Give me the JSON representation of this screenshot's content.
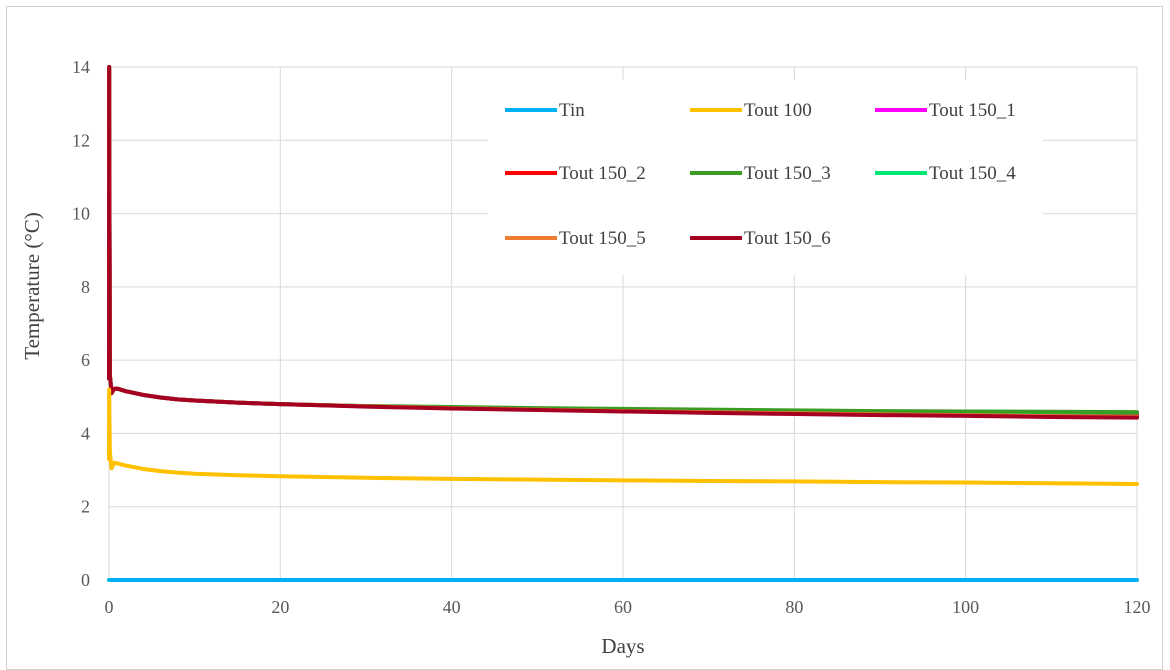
{
  "chart_data": {
    "type": "line",
    "title": "",
    "xlabel": "Days",
    "ylabel": "Temperature (°C)",
    "xlim": [
      0,
      120
    ],
    "ylim": [
      0,
      14
    ],
    "xticks": [
      0,
      20,
      40,
      60,
      80,
      100,
      120
    ],
    "yticks": [
      0,
      2,
      4,
      6,
      8,
      10,
      12,
      14
    ],
    "grid": true,
    "legend_position": "top-right",
    "legend_order": [
      "Tin",
      "Tout 100",
      "Tout 150_1",
      "Tout 150_2",
      "Tout 150_3",
      "Tout 150_4",
      "Tout 150_5",
      "Tout 150_6"
    ],
    "series": [
      {
        "name": "Tout 150_1",
        "color": "#ff00ff",
        "x": [
          0,
          0.02,
          0.1,
          0.3,
          0.6,
          1,
          2,
          4,
          6,
          8,
          10,
          15,
          20,
          30,
          40,
          50,
          60,
          70,
          80,
          90,
          100,
          110,
          120
        ],
        "y": [
          5.5,
          14,
          5.6,
          5.1,
          5.22,
          5.22,
          5.15,
          5.05,
          4.98,
          4.93,
          4.9,
          4.84,
          4.8,
          4.74,
          4.7,
          4.66,
          4.63,
          4.61,
          4.59,
          4.57,
          4.55,
          4.54,
          4.52
        ]
      },
      {
        "name": "Tout 150_2",
        "color": "#ff0000",
        "x": [
          0,
          0.02,
          0.1,
          0.3,
          0.6,
          1,
          2,
          4,
          6,
          8,
          10,
          15,
          20,
          30,
          40,
          50,
          60,
          70,
          80,
          90,
          100,
          110,
          120
        ],
        "y": [
          5.5,
          14,
          5.6,
          5.1,
          5.22,
          5.22,
          5.15,
          5.05,
          4.98,
          4.93,
          4.9,
          4.84,
          4.8,
          4.74,
          4.7,
          4.66,
          4.63,
          4.61,
          4.59,
          4.57,
          4.55,
          4.53,
          4.5
        ]
      },
      {
        "name": "Tout 150_4",
        "color": "#00e676",
        "x": [
          0,
          0.02,
          0.1,
          0.3,
          0.6,
          1,
          2,
          4,
          6,
          8,
          10,
          15,
          20,
          30,
          40,
          50,
          60,
          70,
          80,
          90,
          100,
          110,
          120
        ],
        "y": [
          5.5,
          14,
          5.6,
          5.1,
          5.22,
          5.22,
          5.15,
          5.05,
          4.98,
          4.93,
          4.9,
          4.84,
          4.8,
          4.74,
          4.71,
          4.68,
          4.66,
          4.64,
          4.62,
          4.6,
          4.59,
          4.58,
          4.57
        ]
      },
      {
        "name": "Tout 150_3",
        "color": "#3a9d23",
        "x": [
          0,
          0.02,
          0.1,
          0.3,
          0.6,
          1,
          2,
          4,
          6,
          8,
          10,
          15,
          20,
          30,
          40,
          50,
          60,
          70,
          80,
          90,
          100,
          110,
          120
        ],
        "y": [
          5.5,
          14,
          5.6,
          5.1,
          5.22,
          5.22,
          5.15,
          5.05,
          4.98,
          4.93,
          4.9,
          4.84,
          4.8,
          4.75,
          4.72,
          4.69,
          4.67,
          4.65,
          4.63,
          4.61,
          4.6,
          4.59,
          4.58
        ]
      },
      {
        "name": "Tout 150_5",
        "color": "#ed7d31",
        "x": [
          0,
          0.02,
          0.1,
          0.3,
          0.6,
          1,
          2,
          4,
          6,
          8,
          10,
          15,
          20,
          30,
          40,
          50,
          60,
          70,
          80,
          90,
          100,
          110,
          120
        ],
        "y": [
          5.5,
          14,
          5.6,
          5.1,
          5.22,
          5.22,
          5.15,
          5.05,
          4.98,
          4.93,
          4.9,
          4.84,
          4.8,
          4.74,
          4.69,
          4.65,
          4.61,
          4.58,
          4.55,
          4.52,
          4.5,
          4.47,
          4.45
        ]
      },
      {
        "name": "Tout 150_6",
        "color": "#a50021",
        "x": [
          0,
          0.02,
          0.1,
          0.3,
          0.6,
          1,
          2,
          4,
          6,
          8,
          10,
          15,
          20,
          30,
          40,
          50,
          60,
          70,
          80,
          90,
          100,
          110,
          120
        ],
        "y": [
          5.5,
          14,
          5.6,
          5.1,
          5.22,
          5.22,
          5.15,
          5.05,
          4.98,
          4.93,
          4.9,
          4.84,
          4.8,
          4.73,
          4.68,
          4.64,
          4.6,
          4.56,
          4.53,
          4.5,
          4.48,
          4.45,
          4.43
        ]
      },
      {
        "name": "Tout 100",
        "color": "#ffc000",
        "x": [
          0,
          0.02,
          0.1,
          0.3,
          0.6,
          1,
          2,
          4,
          6,
          8,
          10,
          15,
          20,
          30,
          40,
          50,
          60,
          70,
          80,
          90,
          100,
          110,
          120
        ],
        "y": [
          3.3,
          5.2,
          3.5,
          3.05,
          3.2,
          3.18,
          3.12,
          3.03,
          2.97,
          2.93,
          2.9,
          2.86,
          2.83,
          2.79,
          2.76,
          2.74,
          2.72,
          2.7,
          2.69,
          2.67,
          2.66,
          2.64,
          2.62
        ]
      },
      {
        "name": "Tin",
        "color": "#00b0f0",
        "x": [
          0,
          120
        ],
        "y": [
          0,
          0
        ]
      }
    ]
  }
}
